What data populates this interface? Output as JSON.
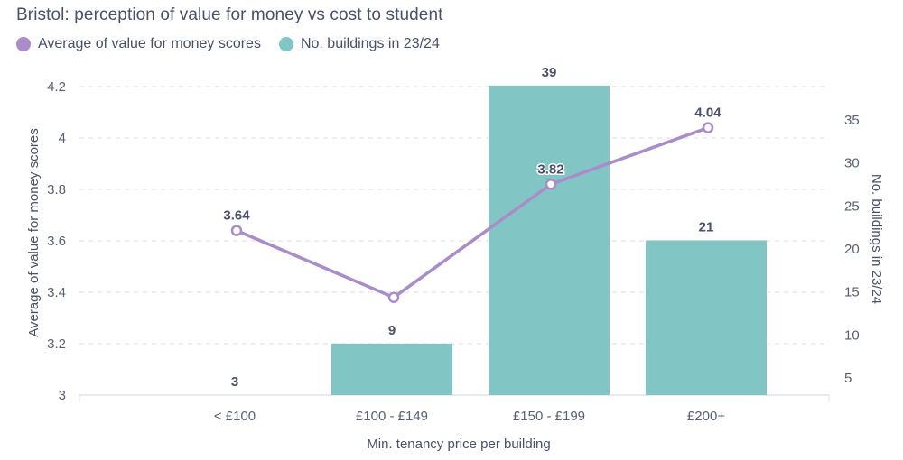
{
  "title": "Bristol: perception of value for money vs cost to student",
  "legend": [
    {
      "label": "Average of value for money scores",
      "color": "#a98cc9"
    },
    {
      "label": "No. buildings in 23/24",
      "color": "#82c5c5"
    }
  ],
  "axes": {
    "x_title": "Min. tenancy price per building",
    "y_left_title": "Average of value for money scores",
    "y_right_title": "No. buildings in 23/24",
    "y_left_ticks": [
      "4.2",
      "4",
      "3.8",
      "3.6",
      "3.4",
      "3.2",
      "3"
    ],
    "y_right_ticks": [
      "35",
      "30",
      "25",
      "20",
      "15",
      "10",
      "5"
    ]
  },
  "chart_data": {
    "type": "bar+line",
    "title": "Bristol: perception of value for money vs cost to student",
    "categories": [
      "< £100",
      "£100 - £149",
      "£150 - £199",
      "£200+"
    ],
    "xlabel": "Min. tenancy price per building",
    "series": [
      {
        "name": "No. buildings in 23/24",
        "type": "bar",
        "axis": "right",
        "values": [
          3,
          9,
          39,
          21
        ],
        "color": "#82c5c5"
      },
      {
        "name": "Average of value for money scores",
        "type": "line",
        "axis": "left",
        "values": [
          3.64,
          3.38,
          3.82,
          4.04
        ],
        "color": "#a98cc9"
      }
    ],
    "ylabel_left": "Average of value for money scores",
    "ylim_left": [
      3,
      4.2
    ],
    "ylabel_right": "No. buildings in 23/24",
    "yticks_right": [
      5,
      10,
      15,
      20,
      25,
      30,
      35
    ],
    "grid": true,
    "legend_position": "top-left"
  },
  "data_labels": {
    "bars": [
      "3",
      "9",
      "39",
      "21"
    ],
    "line": [
      "3.64",
      "",
      "3.82",
      "4.04"
    ]
  }
}
